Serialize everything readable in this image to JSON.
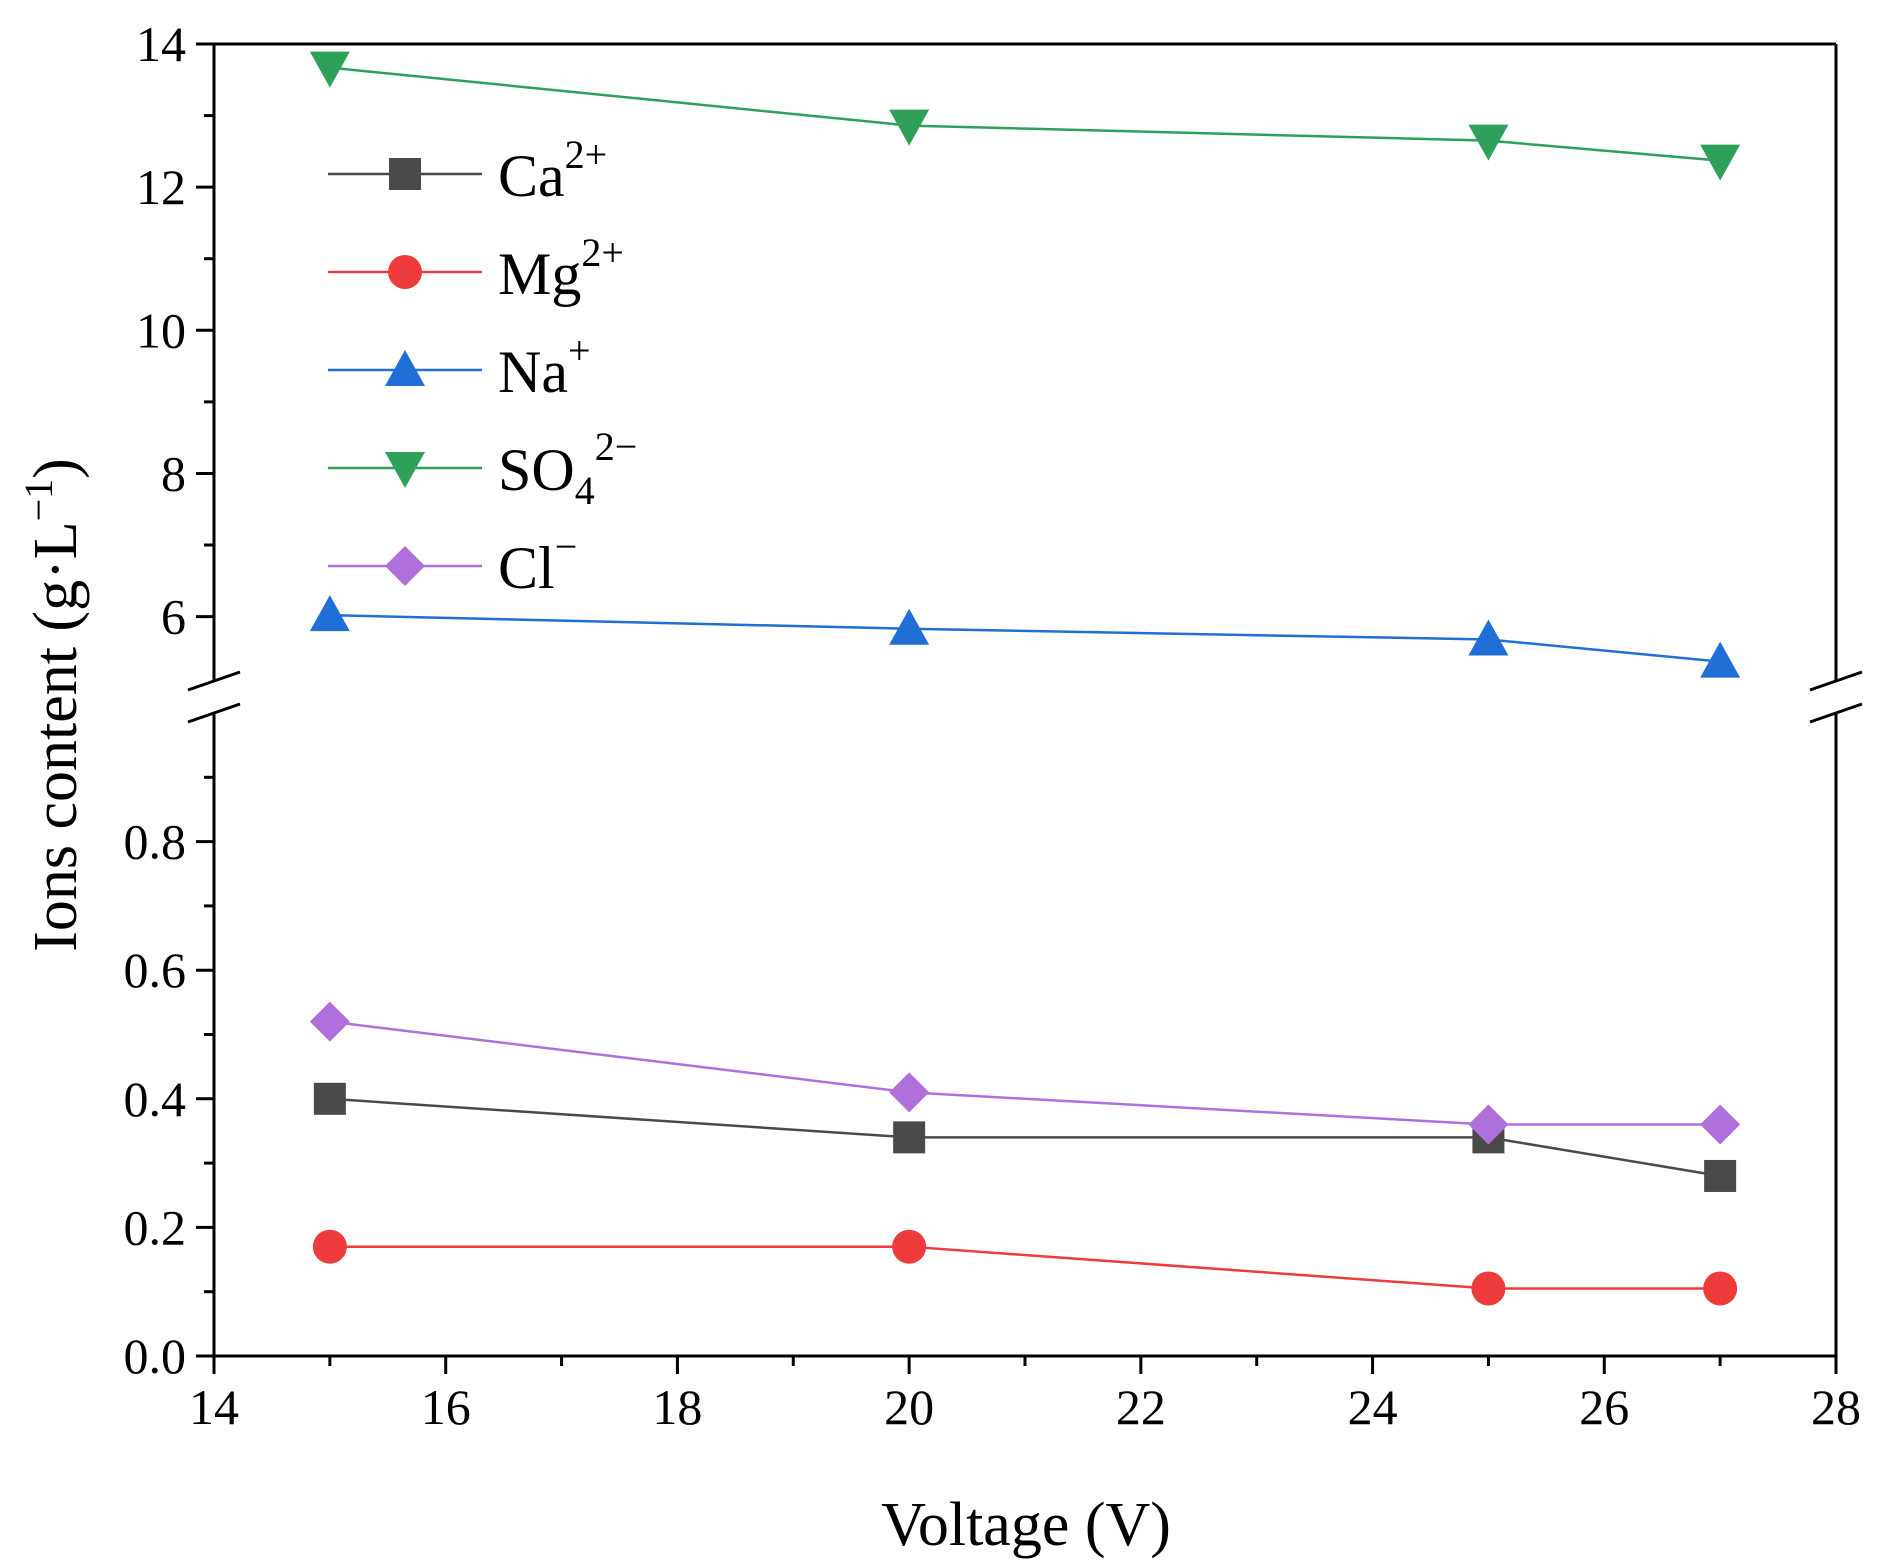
{
  "chart_data": {
    "type": "line",
    "xlabel": "Voltage (V)",
    "ylabel": "Ions content (g·L",
    "ylabel_sup": "−1",
    "ylabel_close": ")",
    "xlim": [
      14,
      28
    ],
    "ylim_lower": [
      0,
      1.0
    ],
    "ylim_upper": [
      5.1,
      14
    ],
    "axis_break": true,
    "x": [
      15,
      20,
      25,
      27
    ],
    "x_ticks": [
      "14",
      "16",
      "18",
      "20",
      "22",
      "24",
      "26",
      "28"
    ],
    "y_ticks_upper": [
      "6",
      "8",
      "10",
      "12",
      "14"
    ],
    "y_ticks_lower": [
      "0.0",
      "0.2",
      "0.4",
      "0.6",
      "0.8"
    ],
    "legend_position": "top-left",
    "series": [
      {
        "key": "ca",
        "name": "Ca",
        "sup": "2+",
        "sub": "",
        "color": "#4a4a4a",
        "marker": "square",
        "values": [
          0.4,
          0.34,
          0.34,
          0.28
        ]
      },
      {
        "key": "mg",
        "name": "Mg",
        "sup": "2+",
        "sub": "",
        "color": "#ee3b3b",
        "marker": "circle",
        "values": [
          0.17,
          0.17,
          0.105,
          0.105
        ]
      },
      {
        "key": "na",
        "name": "Na",
        "sup": "+",
        "sub": "",
        "color": "#1f6fd6",
        "marker": "triangle-up",
        "values": [
          6.02,
          5.83,
          5.68,
          5.37
        ]
      },
      {
        "key": "so4",
        "name": "SO",
        "sup": "2−",
        "sub": "4",
        "color": "#2ea05a",
        "marker": "triangle-down",
        "values": [
          13.67,
          12.86,
          12.65,
          12.37
        ]
      },
      {
        "key": "cl",
        "name": "Cl",
        "sup": "−",
        "sub": "",
        "color": "#b070dc",
        "marker": "diamond",
        "values": [
          0.52,
          0.41,
          0.36,
          0.36
        ]
      }
    ]
  }
}
